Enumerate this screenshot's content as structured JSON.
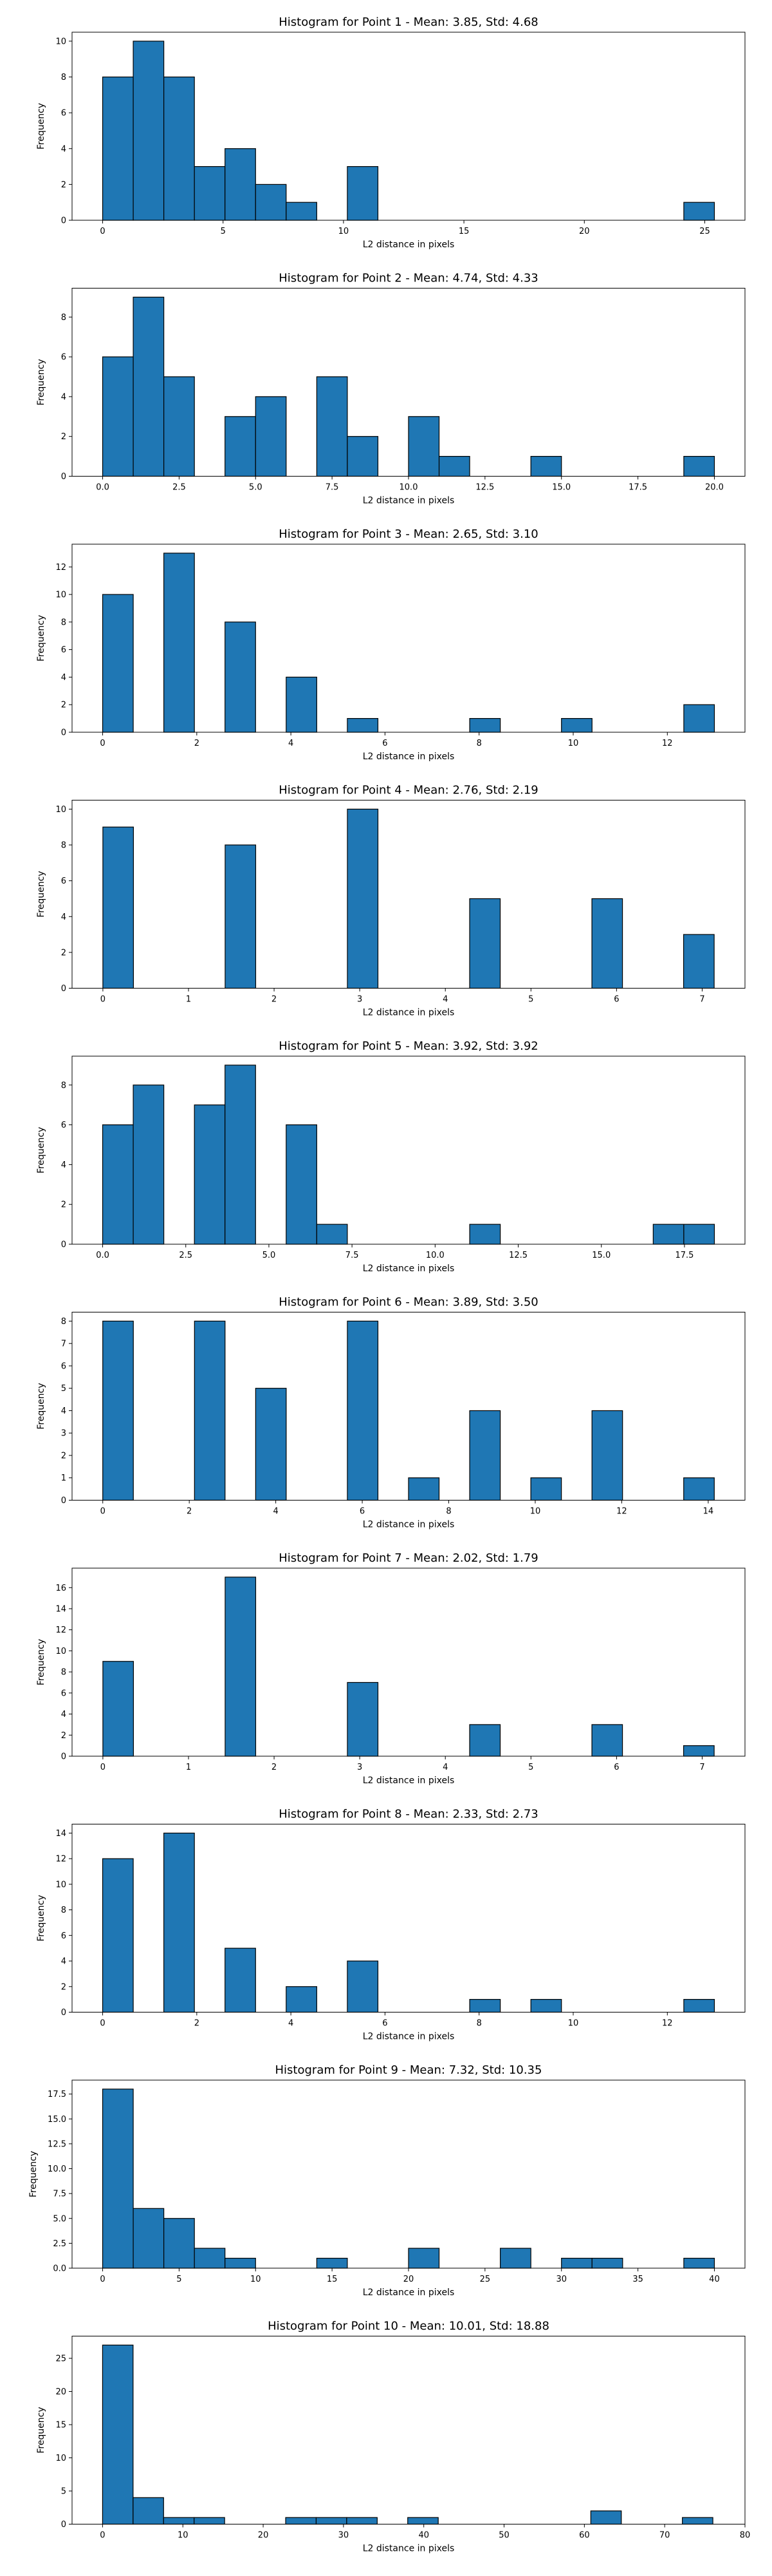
{
  "figure": {
    "background": "#ffffff"
  },
  "bar_color": "#1f77b4",
  "edge_color": "#000000",
  "chart_data": [
    {
      "type": "bar",
      "title": "Histogram for Point 1 - Mean: 3.85, Std: 4.68",
      "xlabel": "L2 distance in pixels",
      "ylabel": "Frequency",
      "xlim": [
        -1.27,
        26.67
      ],
      "ylim": [
        0,
        10.5
      ],
      "xticks": [
        0,
        5,
        10,
        15,
        20,
        25
      ],
      "xtick_labels": [
        "0",
        "5",
        "10",
        "15",
        "20",
        "25"
      ],
      "yticks": [
        0,
        2,
        4,
        6,
        8,
        10
      ],
      "ytick_labels": [
        "0",
        "2",
        "4",
        "6",
        "8",
        "10"
      ],
      "bin_edges": [
        0,
        1.27,
        2.54,
        3.81,
        5.08,
        6.35,
        7.62,
        8.89,
        10.16,
        11.43,
        12.7,
        13.97,
        15.24,
        16.51,
        17.78,
        19.05,
        20.32,
        21.59,
        22.86,
        24.13,
        25.4
      ],
      "counts": [
        8,
        10,
        8,
        3,
        4,
        2,
        1,
        0,
        3,
        0,
        0,
        0,
        0,
        0,
        0,
        0,
        0,
        0,
        0,
        1
      ]
    },
    {
      "type": "bar",
      "title": "Histogram for Point 2 - Mean: 4.74, Std: 4.33",
      "xlabel": "L2 distance in pixels",
      "ylabel": "Frequency",
      "xlim": [
        -1.0,
        21.0
      ],
      "ylim": [
        0,
        9.45
      ],
      "xticks": [
        0,
        2.5,
        5,
        7.5,
        10,
        12.5,
        15,
        17.5,
        20
      ],
      "xtick_labels": [
        "0.0",
        "2.5",
        "5.0",
        "7.5",
        "10.0",
        "12.5",
        "15.0",
        "17.5",
        "20.0"
      ],
      "yticks": [
        0,
        2,
        4,
        6,
        8
      ],
      "ytick_labels": [
        "0",
        "2",
        "4",
        "6",
        "8"
      ],
      "bin_edges": [
        0,
        1,
        2,
        3,
        4,
        5,
        6,
        7,
        8,
        9,
        10,
        11,
        12,
        13,
        14,
        15,
        16,
        17,
        18,
        19,
        20
      ],
      "counts": [
        6,
        9,
        5,
        0,
        3,
        4,
        0,
        5,
        2,
        0,
        3,
        1,
        0,
        0,
        1,
        0,
        0,
        0,
        0,
        1
      ]
    },
    {
      "type": "bar",
      "title": "Histogram for Point 3 - Mean: 2.65, Std: 3.10",
      "xlabel": "L2 distance in pixels",
      "ylabel": "Frequency",
      "xlim": [
        -0.65,
        13.65
      ],
      "ylim": [
        0,
        13.65
      ],
      "xticks": [
        0,
        2,
        4,
        6,
        8,
        10,
        12
      ],
      "xtick_labels": [
        "0",
        "2",
        "4",
        "6",
        "8",
        "10",
        "12"
      ],
      "yticks": [
        0,
        2,
        4,
        6,
        8,
        10,
        12
      ],
      "ytick_labels": [
        "0",
        "2",
        "4",
        "6",
        "8",
        "10",
        "12"
      ],
      "bin_edges": [
        0,
        0.65,
        1.3,
        1.95,
        2.6,
        3.25,
        3.9,
        4.55,
        5.2,
        5.85,
        6.5,
        7.15,
        7.8,
        8.45,
        9.1,
        9.75,
        10.4,
        11.05,
        11.7,
        12.35,
        13.0
      ],
      "counts": [
        10,
        0,
        13,
        0,
        8,
        0,
        4,
        0,
        1,
        0,
        0,
        0,
        1,
        0,
        0,
        1,
        0,
        0,
        0,
        2
      ]
    },
    {
      "type": "bar",
      "title": "Histogram for Point 4 - Mean: 2.76, Std: 2.19",
      "xlabel": "L2 distance in pixels",
      "ylabel": "Frequency",
      "xlim": [
        -0.36,
        7.5
      ],
      "ylim": [
        0,
        10.5
      ],
      "xticks": [
        0,
        1,
        2,
        3,
        4,
        5,
        6,
        7
      ],
      "xtick_labels": [
        "0",
        "1",
        "2",
        "3",
        "4",
        "5",
        "6",
        "7"
      ],
      "yticks": [
        0,
        2,
        4,
        6,
        8,
        10
      ],
      "ytick_labels": [
        "0",
        "2",
        "4",
        "6",
        "8",
        "10"
      ],
      "bin_edges": [
        0,
        0.357,
        0.714,
        1.071,
        1.428,
        1.785,
        2.142,
        2.499,
        2.856,
        3.213,
        3.57,
        3.927,
        4.284,
        4.641,
        4.998,
        5.355,
        5.712,
        6.069,
        6.426,
        6.783,
        7.14
      ],
      "counts": [
        9,
        0,
        0,
        0,
        8,
        0,
        0,
        0,
        10,
        0,
        0,
        0,
        5,
        0,
        0,
        0,
        5,
        0,
        0,
        3
      ]
    },
    {
      "type": "bar",
      "title": "Histogram for Point 5 - Mean: 3.92, Std: 3.92",
      "xlabel": "L2 distance in pixels",
      "ylabel": "Frequency",
      "xlim": [
        -0.92,
        19.32
      ],
      "ylim": [
        0,
        9.45
      ],
      "xticks": [
        0,
        2.5,
        5,
        7.5,
        10,
        12.5,
        15,
        17.5
      ],
      "xtick_labels": [
        "0.0",
        "2.5",
        "5.0",
        "7.5",
        "10.0",
        "12.5",
        "15.0",
        "17.5"
      ],
      "yticks": [
        0,
        2,
        4,
        6,
        8
      ],
      "ytick_labels": [
        "0",
        "2",
        "4",
        "6",
        "8"
      ],
      "bin_edges": [
        0,
        0.92,
        1.84,
        2.76,
        3.68,
        4.6,
        5.52,
        6.44,
        7.36,
        8.28,
        9.2,
        10.12,
        11.04,
        11.96,
        12.88,
        13.8,
        14.72,
        15.64,
        16.56,
        17.48,
        18.4
      ],
      "counts": [
        6,
        8,
        0,
        7,
        9,
        0,
        6,
        1,
        0,
        0,
        0,
        0,
        1,
        0,
        0,
        0,
        0,
        0,
        1,
        1
      ]
    },
    {
      "type": "bar",
      "title": "Histogram for Point 6 - Mean: 3.89, Std: 3.50",
      "xlabel": "L2 distance in pixels",
      "ylabel": "Frequency",
      "xlim": [
        -0.71,
        14.85
      ],
      "ylim": [
        0,
        8.4
      ],
      "xticks": [
        0,
        2,
        4,
        6,
        8,
        10,
        12,
        14
      ],
      "xtick_labels": [
        "0",
        "2",
        "4",
        "6",
        "8",
        "10",
        "12",
        "14"
      ],
      "yticks": [
        0,
        1,
        2,
        3,
        4,
        5,
        6,
        7,
        8
      ],
      "ytick_labels": [
        "0",
        "1",
        "2",
        "3",
        "4",
        "5",
        "6",
        "7",
        "8"
      ],
      "bin_edges": [
        0,
        0.707,
        1.414,
        2.121,
        2.828,
        3.535,
        4.242,
        4.949,
        5.656,
        6.363,
        7.07,
        7.777,
        8.484,
        9.191,
        9.898,
        10.605,
        11.312,
        12.019,
        12.726,
        13.433,
        14.14
      ],
      "counts": [
        8,
        0,
        0,
        8,
        0,
        5,
        0,
        0,
        8,
        0,
        1,
        0,
        4,
        0,
        1,
        0,
        4,
        0,
        0,
        1
      ]
    },
    {
      "type": "bar",
      "title": "Histogram for Point 7 - Mean: 2.02, Std: 1.79",
      "xlabel": "L2 distance in pixels",
      "ylabel": "Frequency",
      "xlim": [
        -0.36,
        7.5
      ],
      "ylim": [
        0,
        17.85
      ],
      "xticks": [
        0,
        1,
        2,
        3,
        4,
        5,
        6,
        7
      ],
      "xtick_labels": [
        "0",
        "1",
        "2",
        "3",
        "4",
        "5",
        "6",
        "7"
      ],
      "yticks": [
        0,
        2,
        4,
        6,
        8,
        10,
        12,
        14,
        16
      ],
      "ytick_labels": [
        "0",
        "2",
        "4",
        "6",
        "8",
        "10",
        "12",
        "14",
        "16"
      ],
      "bin_edges": [
        0,
        0.357,
        0.714,
        1.071,
        1.428,
        1.785,
        2.142,
        2.499,
        2.856,
        3.213,
        3.57,
        3.927,
        4.284,
        4.641,
        4.998,
        5.355,
        5.712,
        6.069,
        6.426,
        6.783,
        7.14
      ],
      "counts": [
        9,
        0,
        0,
        0,
        17,
        0,
        0,
        0,
        7,
        0,
        0,
        0,
        3,
        0,
        0,
        0,
        3,
        0,
        0,
        1
      ]
    },
    {
      "type": "bar",
      "title": "Histogram for Point 8 - Mean: 2.33, Std: 2.73",
      "xlabel": "L2 distance in pixels",
      "ylabel": "Frequency",
      "xlim": [
        -0.65,
        13.65
      ],
      "ylim": [
        0,
        14.7
      ],
      "xticks": [
        0,
        2,
        4,
        6,
        8,
        10,
        12
      ],
      "xtick_labels": [
        "0",
        "2",
        "4",
        "6",
        "8",
        "10",
        "12"
      ],
      "yticks": [
        0,
        2,
        4,
        6,
        8,
        10,
        12,
        14
      ],
      "ytick_labels": [
        "0",
        "2",
        "4",
        "6",
        "8",
        "10",
        "12",
        "14"
      ],
      "bin_edges": [
        0,
        0.65,
        1.3,
        1.95,
        2.6,
        3.25,
        3.9,
        4.55,
        5.2,
        5.85,
        6.5,
        7.15,
        7.8,
        8.45,
        9.1,
        9.75,
        10.4,
        11.05,
        11.7,
        12.35,
        13.0
      ],
      "counts": [
        12,
        0,
        14,
        0,
        5,
        0,
        2,
        0,
        4,
        0,
        0,
        0,
        1,
        0,
        1,
        0,
        0,
        0,
        0,
        1
      ]
    },
    {
      "type": "bar",
      "title": "Histogram for Point 9 - Mean: 7.32, Std: 10.35",
      "xlabel": "L2 distance in pixels",
      "ylabel": "Frequency",
      "xlim": [
        -2.0,
        42.0
      ],
      "ylim": [
        0,
        18.9
      ],
      "xticks": [
        0,
        5,
        10,
        15,
        20,
        25,
        30,
        35,
        40
      ],
      "xtick_labels": [
        "0",
        "5",
        "10",
        "15",
        "20",
        "25",
        "30",
        "35",
        "40"
      ],
      "yticks": [
        0,
        2.5,
        5,
        7.5,
        10,
        12.5,
        15,
        17.5
      ],
      "ytick_labels": [
        "0.0",
        "2.5",
        "5.0",
        "7.5",
        "10.0",
        "12.5",
        "15.0",
        "17.5"
      ],
      "bin_edges": [
        0,
        2,
        4,
        6,
        8,
        10,
        12,
        14,
        16,
        18,
        20,
        22,
        24,
        26,
        28,
        30,
        32,
        34,
        36,
        38,
        40
      ],
      "counts": [
        18,
        6,
        5,
        2,
        1,
        0,
        0,
        1,
        0,
        0,
        2,
        0,
        0,
        2,
        0,
        1,
        1,
        0,
        0,
        1
      ]
    },
    {
      "type": "bar",
      "title": "Histogram for Point 10 - Mean: 10.01, Std: 18.88",
      "xlabel": "L2 distance in pixels",
      "ylabel": "Frequency",
      "xlim": [
        -3.8,
        80.0
      ],
      "ylim": [
        0,
        28.35
      ],
      "xticks": [
        0,
        10,
        20,
        30,
        40,
        50,
        60,
        70,
        80
      ],
      "xtick_labels": [
        "0",
        "10",
        "20",
        "30",
        "40",
        "50",
        "60",
        "70",
        "80"
      ],
      "yticks": [
        0,
        5,
        10,
        15,
        20,
        25
      ],
      "ytick_labels": [
        "0",
        "5",
        "10",
        "15",
        "20",
        "25"
      ],
      "bin_edges": [
        0,
        3.8,
        7.6,
        11.4,
        15.2,
        19.0,
        22.8,
        26.6,
        30.4,
        34.2,
        38.0,
        41.8,
        45.6,
        49.4,
        53.2,
        57.0,
        60.8,
        64.6,
        68.4,
        72.2,
        76.0
      ],
      "counts": [
        27,
        4,
        1,
        1,
        0,
        0,
        1,
        1,
        1,
        0,
        1,
        0,
        0,
        0,
        0,
        0,
        2,
        0,
        0,
        1
      ]
    }
  ]
}
